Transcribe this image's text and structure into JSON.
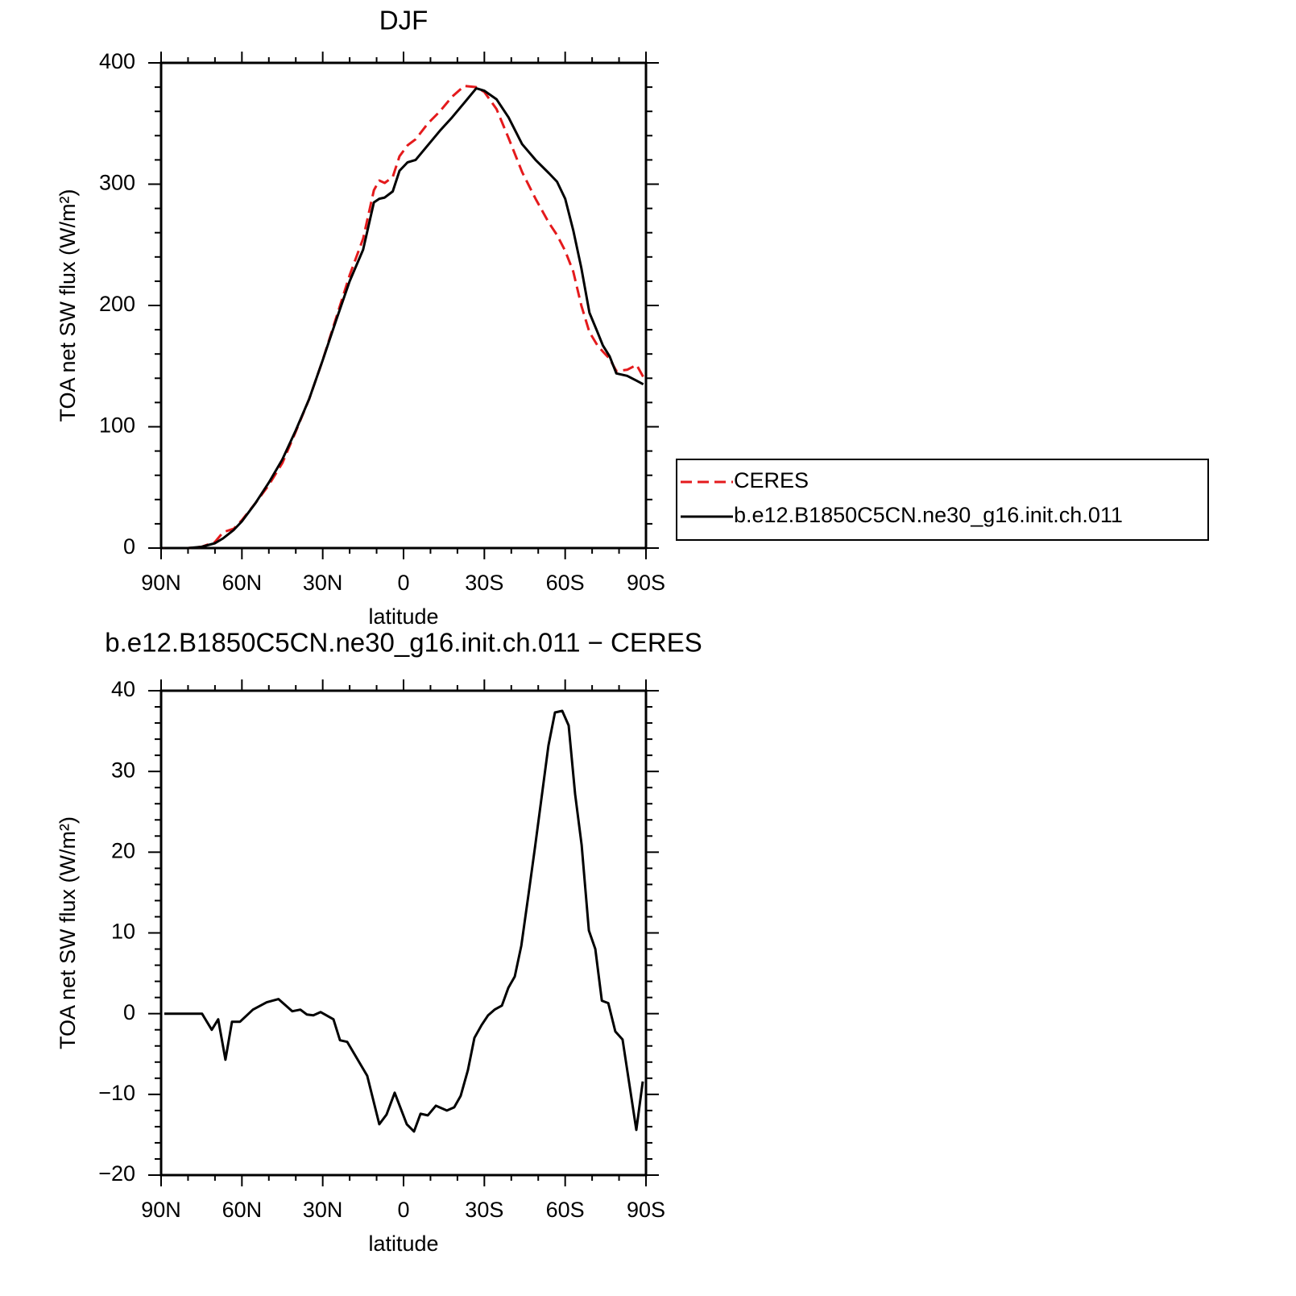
{
  "chart_data": [
    {
      "type": "line",
      "title": "DJF",
      "x_label": "latitude",
      "y_label": "TOA net SW flux (W/m²)",
      "x": [
        89,
        85,
        80,
        75,
        70,
        67,
        63,
        60,
        55,
        50,
        45,
        40,
        35,
        30,
        25,
        20,
        15,
        11,
        9,
        7,
        4,
        1.5,
        -1.5,
        -4.5,
        -9,
        -13.5,
        -18,
        -22.5,
        -27,
        -30,
        -34.5,
        -39,
        -44,
        -49,
        -54,
        -57,
        -60,
        -63,
        -66,
        -69,
        -72,
        -74,
        -76.5,
        -79,
        -83,
        -86.5,
        -89
      ],
      "series": [
        {
          "name": "CERES",
          "color": "#e41a1c",
          "dashed": true,
          "values": [
            0,
            0,
            0,
            1,
            5,
            13,
            16,
            23,
            37,
            52,
            70,
            96,
            123,
            155,
            190,
            225,
            255,
            295,
            303,
            301,
            306,
            323,
            332,
            337,
            350,
            360,
            372,
            381,
            380,
            376,
            362,
            338,
            310,
            288,
            268,
            258,
            245,
            228,
            200,
            178,
            167,
            162,
            156,
            146,
            147,
            151,
            141
          ]
        },
        {
          "name": "b.e12.B1850C5CN.ne30_g16.init.ch.011",
          "color": "#000000",
          "dashed": false,
          "values": [
            0,
            0,
            0,
            1,
            4,
            8,
            15,
            22,
            37,
            54,
            73,
            97,
            123,
            155,
            188,
            220,
            246,
            285,
            288,
            289,
            294,
            311,
            318,
            320,
            332,
            344,
            355,
            367,
            379,
            377,
            370,
            355,
            333,
            320,
            309,
            302,
            288,
            262,
            231,
            194,
            178,
            167,
            158,
            144,
            142,
            138,
            135
          ]
        }
      ],
      "xlim": [
        90,
        -90
      ],
      "xticks": [
        {
          "value": 90,
          "label": "90N"
        },
        {
          "value": 60,
          "label": "60N"
        },
        {
          "value": 30,
          "label": "30N"
        },
        0,
        {
          "value": -30,
          "label": "30S"
        },
        {
          "value": -60,
          "label": "60S"
        },
        {
          "value": -90,
          "label": "90S"
        }
      ],
      "ylim": [
        0,
        400
      ],
      "yticks": [
        0,
        100,
        200,
        300,
        400
      ],
      "grid": false,
      "legend": "outside-right"
    },
    {
      "type": "line",
      "title": "b.e12.B1850C5CN.ne30_g16.init.ch.011 − CERES",
      "x_label": "latitude",
      "y_label": "TOA net SW flux (W/m²)",
      "x": [
        88.8,
        74.8,
        71.2,
        68.8,
        66.1,
        63.7,
        60.7,
        55.9,
        50.8,
        46.4,
        41.3,
        38.3,
        35.9,
        33.5,
        30.8,
        26,
        23.6,
        20.9,
        13.5,
        9,
        6.3,
        3.3,
        -1.2,
        -3.9,
        -6.3,
        -9,
        -12,
        -16.1,
        -18.8,
        -21.2,
        -23.9,
        -26.3,
        -29,
        -31.4,
        -33.8,
        -36.5,
        -38.9,
        -41.3,
        -43.7,
        -46.4,
        -48.8,
        -53.8,
        -56.2,
        -58.9,
        -61.3,
        -63.7,
        -66.1,
        -68.8,
        -71.2,
        -73.6,
        -76,
        -78.6,
        -81.3,
        -86.4,
        -88.8
      ],
      "values": [
        0,
        0,
        -2,
        -0.7,
        -5.7,
        -1,
        -1,
        0.5,
        1.4,
        1.8,
        0.3,
        0.5,
        -0.1,
        -0.2,
        0.2,
        -0.7,
        -3.3,
        -3.5,
        -7.7,
        -13.7,
        -12.5,
        -9.8,
        -13.7,
        -14.6,
        -12.4,
        -12.6,
        -11.4,
        -12,
        -11.6,
        -10.2,
        -7,
        -3,
        -1.4,
        -0.2,
        0.5,
        1,
        3.2,
        4.6,
        8.4,
        14.8,
        20.6,
        33.2,
        37.3,
        37.5,
        35.7,
        27.2,
        20.9,
        10.3,
        8,
        1.6,
        1.3,
        -2.2,
        -3.2,
        -14.4,
        -8.4
      ],
      "color": "#000000",
      "xlim": [
        90,
        -90
      ],
      "xticks": [
        {
          "value": 90,
          "label": "90N"
        },
        {
          "value": 60,
          "label": "60N"
        },
        {
          "value": 30,
          "label": "30N"
        },
        0,
        {
          "value": -30,
          "label": "30S"
        },
        {
          "value": -60,
          "label": "60S"
        },
        {
          "value": -90,
          "label": "90S"
        }
      ],
      "ylim": [
        -20,
        40
      ],
      "yticks": [
        {
          "value": -20,
          "label": "−20"
        },
        {
          "value": -10,
          "label": "−10"
        },
        0,
        10,
        20,
        30,
        40
      ],
      "grid": false
    }
  ]
}
